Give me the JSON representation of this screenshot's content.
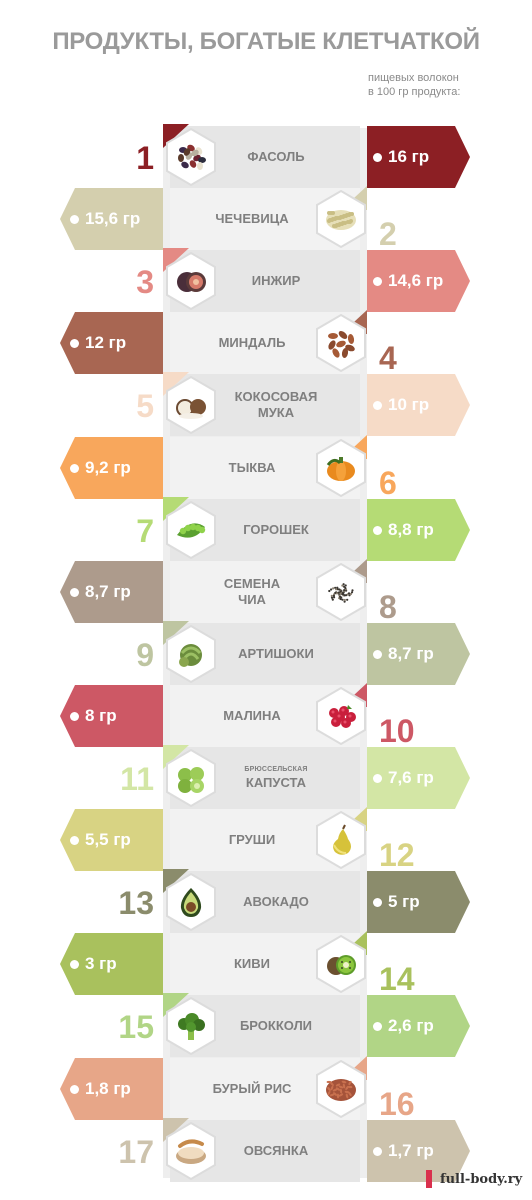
{
  "header": {
    "title": "ПРОДУКТЫ, БОГАТЫЕ КЛЕТЧАТКОЙ",
    "subtitle_line1": "пищевых волокон",
    "subtitle_line2": "в 100 гр продукта:"
  },
  "items": [
    {
      "rank": "1",
      "name": [
        "ФАСОЛЬ"
      ],
      "value": "16 гр",
      "value_grams": 16,
      "color": "#8c1f24",
      "icon": "bean-icon"
    },
    {
      "rank": "2",
      "name": [
        "ЧЕЧЕВИЦА"
      ],
      "value": "15,6 гр",
      "value_grams": 15.6,
      "color": "#d4cfae",
      "icon": "lentil-icon"
    },
    {
      "rank": "3",
      "name": [
        "ИНЖИР"
      ],
      "value": "14,6 гр",
      "value_grams": 14.6,
      "color": "#e48a84",
      "icon": "fig-icon"
    },
    {
      "rank": "4",
      "name": [
        "МИНДАЛЬ"
      ],
      "value": "12 гр",
      "value_grams": 12,
      "color": "#a86652",
      "icon": "almond-icon"
    },
    {
      "rank": "5",
      "name": [
        "КОКОСОВАЯ",
        "МУКА"
      ],
      "value": "10 гр",
      "value_grams": 10,
      "color": "#f6dbc7",
      "icon": "coconut-icon"
    },
    {
      "rank": "6",
      "name": [
        "ТЫКВА"
      ],
      "value": "9,2 гр",
      "value_grams": 9.2,
      "color": "#f8a75c",
      "icon": "pumpkin-icon"
    },
    {
      "rank": "7",
      "name": [
        "ГОРОШЕК"
      ],
      "value": "8,8 гр",
      "value_grams": 8.8,
      "color": "#b5db75",
      "icon": "pea-icon"
    },
    {
      "rank": "8",
      "name": [
        "СЕМЕНА",
        "ЧИА"
      ],
      "value": "8,7 гр",
      "value_grams": 8.7,
      "color": "#ad9b8c",
      "icon": "chia-seed-icon"
    },
    {
      "rank": "9",
      "name": [
        "АРТИШОКИ"
      ],
      "value": "8,7 гр",
      "value_grams": 8.7,
      "color": "#bec5a1",
      "icon": "artichoke-icon"
    },
    {
      "rank": "10",
      "name": [
        "МАЛИНА"
      ],
      "value": "8 гр",
      "value_grams": 8,
      "color": "#cd5865",
      "icon": "raspberry-icon"
    },
    {
      "rank": "11",
      "name": [
        "БРЮССЕЛЬСКАЯ",
        "КАПУСТА"
      ],
      "value": "7,6 гр",
      "value_grams": 7.6,
      "color": "#d3e6a5",
      "icon": "brussels-sprout-icon"
    },
    {
      "rank": "12",
      "name": [
        "ГРУШИ"
      ],
      "value": "5,5 гр",
      "value_grams": 5.5,
      "color": "#d8d383",
      "icon": "pear-icon"
    },
    {
      "rank": "13",
      "name": [
        "АВОКАДО"
      ],
      "value": "5 гр",
      "value_grams": 5,
      "color": "#8b8c6c",
      "icon": "avocado-icon"
    },
    {
      "rank": "14",
      "name": [
        "КИВИ"
      ],
      "value": "3 гр",
      "value_grams": 3,
      "color": "#a9c15d",
      "icon": "kiwi-icon"
    },
    {
      "rank": "15",
      "name": [
        "БРОККОЛИ"
      ],
      "value": "2,6 гр",
      "value_grams": 2.6,
      "color": "#b1d586",
      "icon": "broccoli-icon"
    },
    {
      "rank": "16",
      "name": [
        "БУРЫЙ РИС"
      ],
      "value": "1,8 гр",
      "value_grams": 1.8,
      "color": "#e7a688",
      "icon": "brown-rice-icon"
    },
    {
      "rank": "17",
      "name": [
        "ОВСЯНКА"
      ],
      "value": "1,7 гр",
      "value_grams": 1.7,
      "color": "#cdc3ad",
      "icon": "oatmeal-icon"
    }
  ],
  "footer": {
    "site": "full-body.ry",
    "mark_color": "#d9304d"
  }
}
